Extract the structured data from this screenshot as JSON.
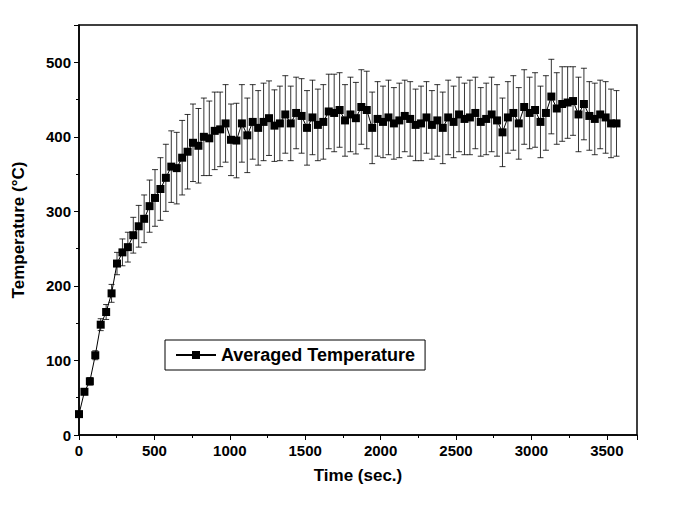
{
  "chart_data": {
    "type": "line",
    "x_label": "Time (sec.)",
    "y_label": "Temperature (°C)",
    "x": [
      0,
      36,
      72,
      108,
      144,
      180,
      216,
      252,
      288,
      324,
      360,
      396,
      432,
      468,
      504,
      540,
      576,
      612,
      648,
      684,
      720,
      756,
      792,
      828,
      864,
      900,
      936,
      972,
      1008,
      1044,
      1080,
      1116,
      1152,
      1188,
      1224,
      1260,
      1296,
      1332,
      1368,
      1404,
      1440,
      1476,
      1512,
      1548,
      1584,
      1620,
      1656,
      1692,
      1728,
      1764,
      1800,
      1836,
      1872,
      1908,
      1944,
      1980,
      2016,
      2052,
      2088,
      2124,
      2160,
      2196,
      2232,
      2268,
      2304,
      2340,
      2376,
      2412,
      2448,
      2484,
      2520,
      2556,
      2592,
      2628,
      2664,
      2700,
      2736,
      2772,
      2808,
      2844,
      2880,
      2916,
      2952,
      2988,
      3024,
      3060,
      3096,
      3132,
      3168,
      3204,
      3240,
      3276,
      3312,
      3348,
      3384,
      3420,
      3456,
      3492,
      3528,
      3564
    ],
    "series": [
      {
        "name": "Averaged Temperature",
        "color": "#000000",
        "marker": "square",
        "line_style": "solid",
        "values": [
          28,
          58,
          72,
          107,
          148,
          165,
          190,
          230,
          245,
          252,
          268,
          280,
          290,
          307,
          318,
          330,
          345,
          360,
          358,
          372,
          380,
          392,
          388,
          400,
          398,
          408,
          410,
          418,
          396,
          395,
          418,
          402,
          420,
          412,
          420,
          425,
          415,
          418,
          430,
          418,
          432,
          428,
          412,
          426,
          416,
          420,
          434,
          432,
          436,
          422,
          430,
          425,
          440,
          436,
          412,
          424,
          420,
          426,
          418,
          422,
          428,
          424,
          416,
          418,
          426,
          416,
          422,
          412,
          426,
          420,
          430,
          424,
          426,
          432,
          420,
          424,
          430,
          422,
          406,
          426,
          432,
          418,
          440,
          432,
          436,
          420,
          432,
          454,
          438,
          444,
          446,
          448,
          430,
          444,
          428,
          424,
          430,
          426,
          418,
          418
        ],
        "errors": [
          2,
          4,
          5,
          6,
          8,
          10,
          12,
          15,
          18,
          20,
          24,
          28,
          32,
          35,
          38,
          42,
          45,
          48,
          48,
          50,
          50,
          52,
          50,
          52,
          50,
          52,
          50,
          52,
          48,
          50,
          52,
          50,
          50,
          50,
          52,
          50,
          48,
          50,
          52,
          50,
          48,
          50,
          50,
          50,
          48,
          50,
          50,
          52,
          50,
          48,
          50,
          48,
          50,
          52,
          48,
          50,
          48,
          50,
          48,
          50,
          48,
          50,
          48,
          50,
          48,
          46,
          48,
          48,
          50,
          48,
          50,
          48,
          50,
          48,
          46,
          48,
          50,
          48,
          46,
          48,
          50,
          48,
          50,
          48,
          50,
          48,
          50,
          50,
          48,
          50,
          48,
          46,
          50,
          48,
          46,
          48,
          46,
          48,
          46,
          44
        ]
      }
    ],
    "xlim": [
      0,
      3700
    ],
    "xticks": [
      0,
      500,
      1000,
      1500,
      2000,
      2500,
      3000,
      3500
    ],
    "ylim": [
      0,
      550
    ],
    "yticks": [
      0,
      100,
      200,
      300,
      400,
      500
    ],
    "grid": false,
    "legend": "middle-left"
  }
}
